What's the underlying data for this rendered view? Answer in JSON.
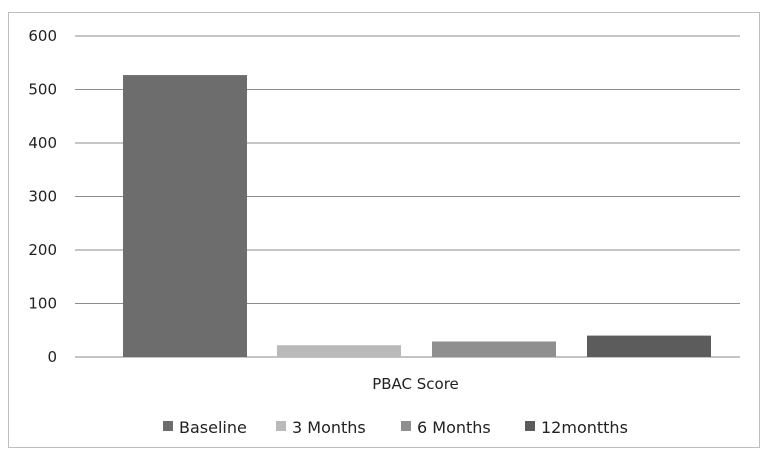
{
  "chart_data": {
    "type": "bar",
    "categories": [
      "PBAC Score"
    ],
    "series": [
      {
        "name": "Baseline",
        "values": [
          527
        ],
        "color": "#6d6d6d"
      },
      {
        "name": "3 Months",
        "values": [
          22
        ],
        "color": "#b9b9b9"
      },
      {
        "name": "6 Months",
        "values": [
          29
        ],
        "color": "#8f8f8f"
      },
      {
        "name": "12montths",
        "values": [
          40
        ],
        "color": "#5c5c5c"
      }
    ],
    "yticks": [
      "0",
      "100",
      "200",
      "300",
      "400",
      "500",
      "600"
    ],
    "ylim": [
      0,
      600
    ],
    "grid": true,
    "legend_position": "bottom"
  }
}
